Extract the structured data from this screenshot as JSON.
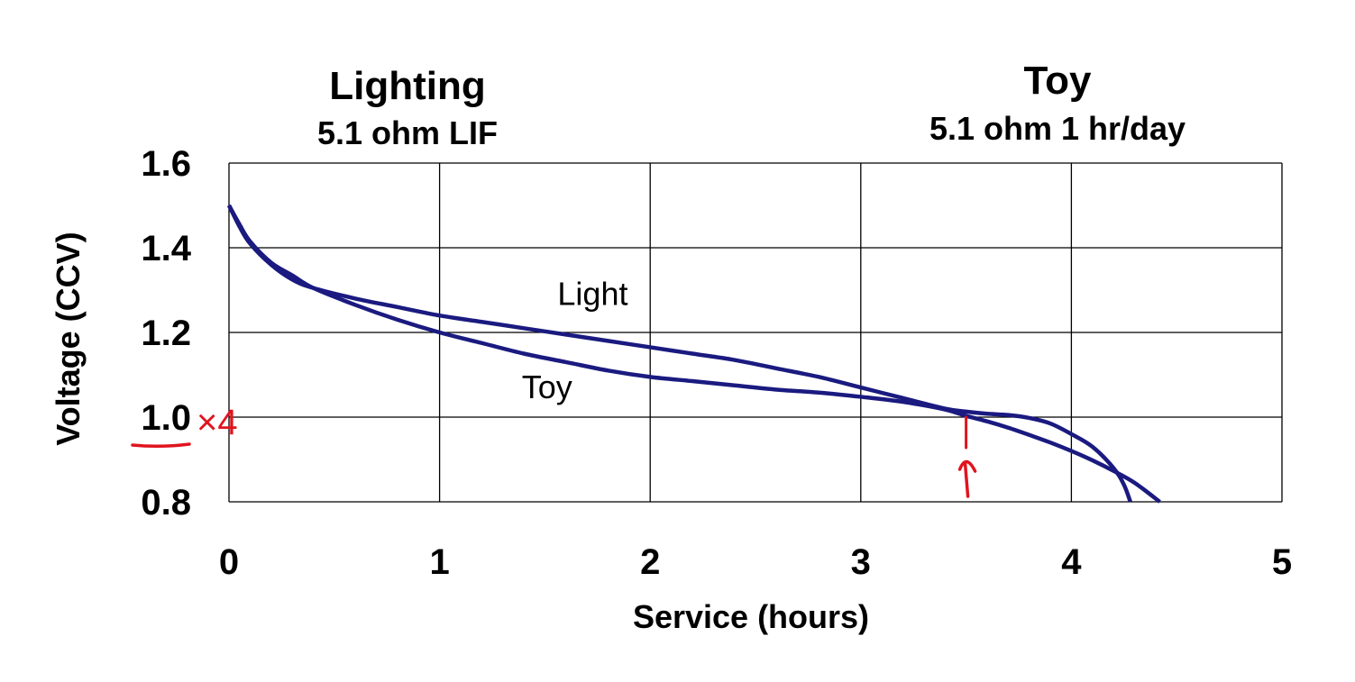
{
  "chart_data": {
    "type": "line",
    "titles": [
      {
        "main": "Lighting",
        "sub": "5.1 ohm LIF"
      },
      {
        "main": "Toy",
        "sub": "5.1 ohm 1 hr/day"
      }
    ],
    "xlabel": "Service (hours)",
    "ylabel": "Voltage (CCV)",
    "xlim": [
      0,
      5
    ],
    "ylim": [
      0.8,
      1.6
    ],
    "x_ticks": [
      "0",
      "1",
      "2",
      "3",
      "4",
      "5"
    ],
    "y_ticks": [
      "0.8",
      "1.0",
      "1.2",
      "1.4",
      "1.6"
    ],
    "grid": true,
    "series_color": "#1a1a80",
    "series": [
      {
        "name": "Light",
        "x": [
          0,
          0.05,
          0.1,
          0.2,
          0.3,
          0.4,
          0.6,
          0.8,
          1.0,
          1.2,
          1.4,
          1.6,
          1.8,
          2.0,
          2.2,
          2.4,
          2.6,
          2.8,
          3.0,
          3.2,
          3.4,
          3.5,
          3.6,
          3.7,
          3.8,
          3.9,
          4.0,
          4.1,
          4.2,
          4.25,
          4.28
        ],
        "y": [
          1.5,
          1.45,
          1.41,
          1.36,
          1.325,
          1.305,
          1.28,
          1.26,
          1.24,
          1.225,
          1.21,
          1.195,
          1.18,
          1.165,
          1.15,
          1.135,
          1.115,
          1.095,
          1.07,
          1.045,
          1.02,
          1.013,
          1.008,
          1.005,
          0.998,
          0.985,
          0.96,
          0.93,
          0.88,
          0.84,
          0.8
        ]
      },
      {
        "name": "Toy",
        "x": [
          0,
          0.05,
          0.1,
          0.2,
          0.3,
          0.4,
          0.6,
          0.8,
          1.0,
          1.2,
          1.4,
          1.6,
          1.8,
          2.0,
          2.2,
          2.4,
          2.6,
          2.8,
          3.0,
          3.2,
          3.4,
          3.5,
          3.6,
          3.7,
          3.8,
          3.9,
          4.0,
          4.1,
          4.2,
          4.3,
          4.42
        ],
        "y": [
          1.5,
          1.455,
          1.415,
          1.365,
          1.335,
          1.305,
          1.265,
          1.23,
          1.2,
          1.175,
          1.15,
          1.13,
          1.11,
          1.095,
          1.085,
          1.075,
          1.065,
          1.058,
          1.048,
          1.036,
          1.018,
          1.003,
          0.99,
          0.975,
          0.958,
          0.94,
          0.92,
          0.898,
          0.873,
          0.845,
          0.8
        ]
      }
    ],
    "series_labels": [
      {
        "text": "Light",
        "x": 1.56,
        "y": 1.265
      },
      {
        "text": "Toy",
        "x": 1.39,
        "y": 1.045
      }
    ],
    "annotations": {
      "color": "#e0141e",
      "text": "×4",
      "marker_at": {
        "x": 3.5,
        "y": 1.0
      }
    }
  }
}
